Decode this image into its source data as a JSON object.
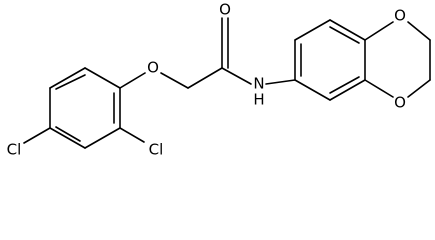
{
  "atoms": [
    "Cl",
    "Cl",
    "O",
    "O",
    "N",
    "H",
    "O",
    "O"
  ]
}
